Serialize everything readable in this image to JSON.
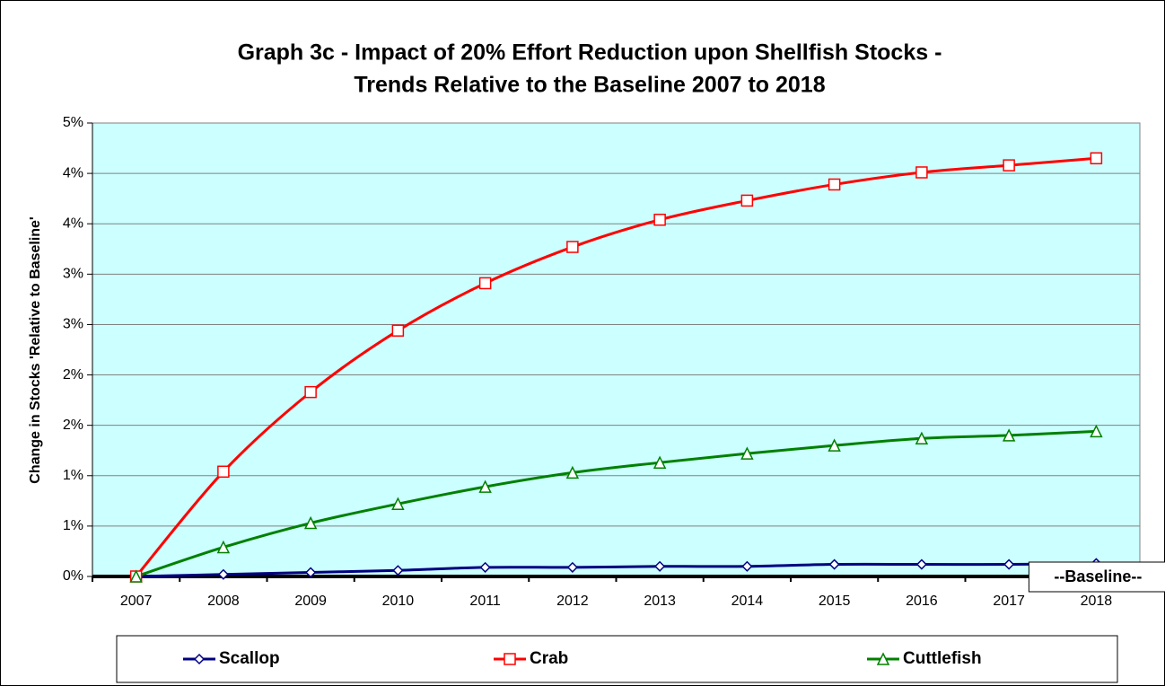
{
  "chart_data": {
    "type": "line",
    "title": "Graph 3c - Impact of 20% Effort Reduction upon Shellfish Stocks -",
    "subtitle": "Trends Relative to the Baseline 2007 to 2018",
    "y_label": "Change in Stocks 'Relative to Baseline'",
    "annotation": "--Baseline--",
    "categories": [
      "2007",
      "2008",
      "2009",
      "2010",
      "2011",
      "2012",
      "2013",
      "2014",
      "2015",
      "2016",
      "2017",
      "2018"
    ],
    "series": [
      {
        "name": "Scallop",
        "color": "#000080",
        "marker": "diamond",
        "values": [
          0,
          0.02,
          0.04,
          0.06,
          0.09,
          0.09,
          0.1,
          0.1,
          0.12,
          0.12,
          0.12,
          0.13
        ]
      },
      {
        "name": "Crab",
        "color": "#ff0000",
        "marker": "square",
        "values": [
          0,
          1.04,
          1.83,
          2.44,
          2.91,
          3.27,
          3.54,
          3.73,
          3.89,
          4.01,
          4.08,
          4.15
        ]
      },
      {
        "name": "Cuttlefish",
        "color": "#008000",
        "marker": "triangle",
        "values": [
          0,
          0.29,
          0.53,
          0.72,
          0.89,
          1.03,
          1.13,
          1.22,
          1.3,
          1.37,
          1.4,
          1.44
        ]
      }
    ],
    "ylim": [
      0,
      4.5
    ],
    "yticks": [
      {
        "value": 0,
        "label": "0%"
      },
      {
        "value": 0.5,
        "label": "1%"
      },
      {
        "value": 1,
        "label": "1%"
      },
      {
        "value": 1.5,
        "label": "2%"
      },
      {
        "value": 2,
        "label": "2%"
      },
      {
        "value": 2.5,
        "label": "3%"
      },
      {
        "value": 3,
        "label": "3%"
      },
      {
        "value": 3.5,
        "label": "4%"
      },
      {
        "value": 4,
        "label": "4%"
      },
      {
        "value": 4.5,
        "label": "5%"
      }
    ],
    "grid": true,
    "plot_background": "#ccffff",
    "legend_position": "bottom"
  }
}
